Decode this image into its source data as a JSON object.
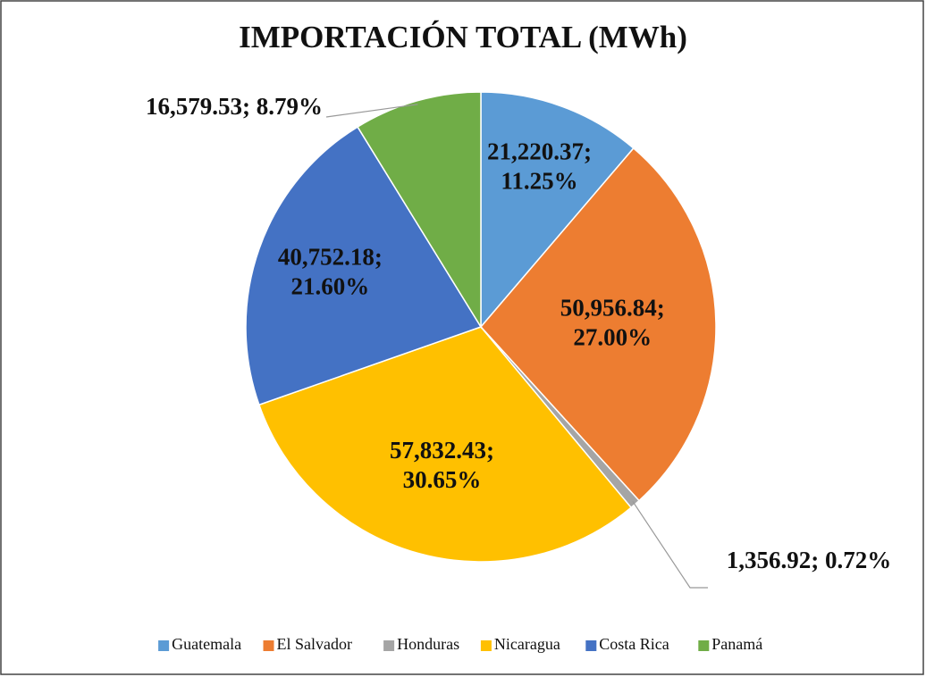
{
  "chart_data": {
    "type": "pie",
    "title": "IMPORTACIÓN TOTAL (MWh)",
    "categories": [
      "Guatemala",
      "El Salvador",
      "Honduras",
      "Nicaragua",
      "Costa Rica",
      "Panamá"
    ],
    "values": [
      21220.37,
      50956.84,
      1356.92,
      57832.43,
      40752.18,
      16579.53
    ],
    "value_labels": [
      "21,220.37; 11.25%",
      "50,956.84; 27.00%",
      "1,356.92; 0.72%",
      "57,832.43; 30.65%",
      "40,752.18; 21.60%",
      "16,579.53; 8.79%"
    ],
    "colors": [
      "#5b9bd5",
      "#ed7d31",
      "#a5a5a5",
      "#ffc000",
      "#4472c4",
      "#70ad47"
    ],
    "legend": "bottom"
  }
}
